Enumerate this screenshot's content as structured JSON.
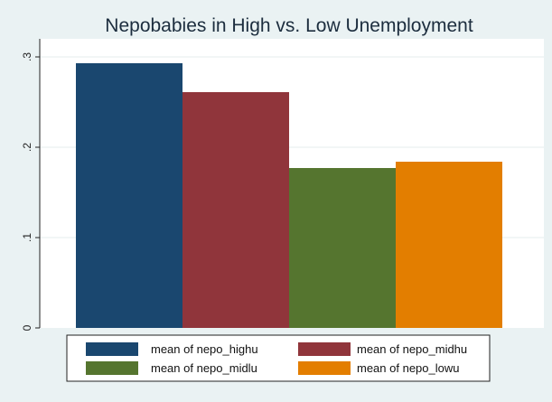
{
  "chart_data": {
    "type": "bar",
    "title": "Nepobabies in High vs. Low Unemployment",
    "xlabel": "",
    "ylabel": "",
    "ylim": [
      0,
      0.3
    ],
    "yticks": [
      0,
      0.1,
      0.2,
      0.3
    ],
    "ytick_labels": [
      "0",
      ".1",
      ".2",
      ".3"
    ],
    "grid": true,
    "legend_position": "bottom",
    "series": [
      {
        "name": "mean of nepo_highu",
        "value": 0.293,
        "color": "#1a476f"
      },
      {
        "name": "mean of nepo_midhu",
        "value": 0.261,
        "color": "#90353b"
      },
      {
        "name": "mean of nepo_midlu",
        "value": 0.177,
        "color": "#55752f"
      },
      {
        "name": "mean of nepo_lowu",
        "value": 0.184,
        "color": "#e37e00"
      }
    ]
  },
  "colors": {
    "background": "#eaf2f3",
    "plot_background": "#ffffff",
    "gridline": "#e6ecee",
    "title": "#1c2d3e"
  }
}
